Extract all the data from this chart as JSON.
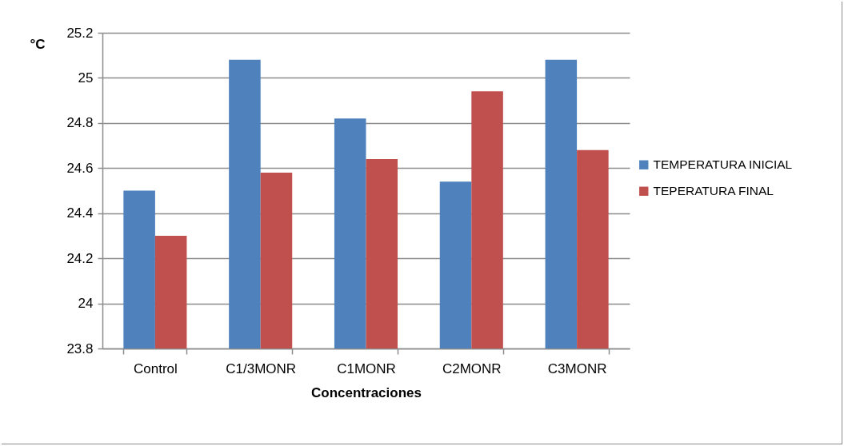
{
  "chart_data": {
    "type": "bar",
    "xlabel": "Concentraciones",
    "ylabel": "°C",
    "categories": [
      "Control",
      "C1/3MONR",
      "C1MONR",
      "C2MONR",
      "C3MONR"
    ],
    "series": [
      {
        "name": "TEMPERATURA INICIAL",
        "color": "#4f81bd",
        "values": [
          24.5,
          25.08,
          24.82,
          24.54,
          25.08
        ]
      },
      {
        "name": "TEPERATURA   FINAL",
        "color": "#c0504d",
        "values": [
          24.3,
          24.58,
          24.64,
          24.94,
          24.68
        ]
      }
    ],
    "ylim": [
      23.8,
      25.2
    ],
    "yticks": [
      23.8,
      24,
      24.2,
      24.4,
      24.6,
      24.8,
      25,
      25.2
    ],
    "grid": "y",
    "legend": "right"
  }
}
